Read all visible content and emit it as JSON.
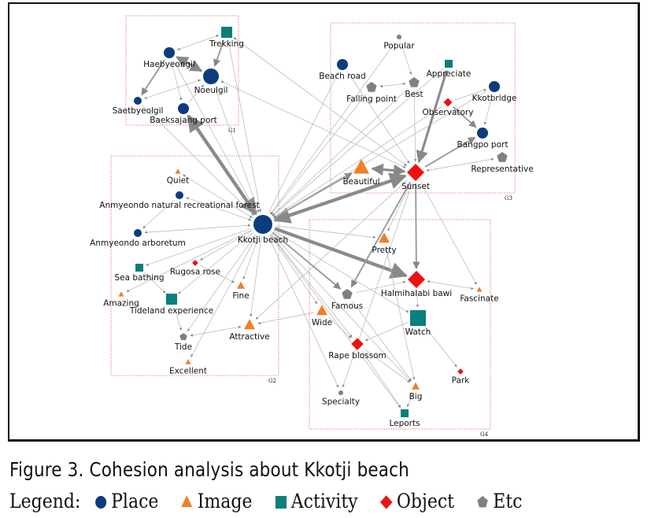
{
  "figure": {
    "caption": "Figure 3. Cohesion analysis about Kkotji beach",
    "legend_title": "Legend:",
    "categories": [
      {
        "key": "place",
        "label": "Place",
        "shape": "circle",
        "color": "#0b3d7e"
      },
      {
        "key": "image",
        "label": "Image",
        "shape": "triangle",
        "color": "#f07f2a"
      },
      {
        "key": "activity",
        "label": "Activity",
        "shape": "square",
        "color": "#0b7f7a"
      },
      {
        "key": "object",
        "label": "Object",
        "shape": "diamond",
        "color": "#ee1111"
      },
      {
        "key": "etc",
        "label": "Etc",
        "shape": "pentagon",
        "color": "#808080"
      }
    ]
  },
  "groups": [
    {
      "id": "G1",
      "label": "G1"
    },
    {
      "id": "G2",
      "label": "G2"
    },
    {
      "id": "G3",
      "label": "G3"
    },
    {
      "id": "G4",
      "label": "G4"
    }
  ],
  "nodes": [
    {
      "id": "trekking",
      "label": "Trekking",
      "type": "activity",
      "group": "G1",
      "size": "m"
    },
    {
      "id": "haebyeongil",
      "label": "Haebyeongil",
      "type": "place",
      "group": "G1",
      "size": "m"
    },
    {
      "id": "noeulgil",
      "label": "Noeulgil",
      "type": "place",
      "group": "G1",
      "size": "l"
    },
    {
      "id": "saetbyeolgil",
      "label": "Saetbyeolgil",
      "type": "place",
      "group": "G1",
      "size": "s"
    },
    {
      "id": "baeksajang",
      "label": "Baeksajang port",
      "type": "place",
      "group": "G1",
      "size": "m"
    },
    {
      "id": "quiet",
      "label": "Quiet",
      "type": "image",
      "group": "G2",
      "size": "xs"
    },
    {
      "id": "forest",
      "label": "Anmyeondo natural recreational forest",
      "type": "place",
      "group": "G2",
      "size": "s"
    },
    {
      "id": "arboretum",
      "label": "Anmyeondo arboretum",
      "type": "place",
      "group": "G2",
      "size": "s"
    },
    {
      "id": "kkotji",
      "label": "Kkotji beach",
      "type": "place",
      "group": "G2",
      "size": "xl"
    },
    {
      "id": "seabathing",
      "label": "Sea bathing",
      "type": "activity",
      "group": "G2",
      "size": "s"
    },
    {
      "id": "rugosa",
      "label": "Rugosa rose",
      "type": "object",
      "group": "G2",
      "size": "xs"
    },
    {
      "id": "amazing",
      "label": "Amazing",
      "type": "image",
      "group": "G2",
      "size": "xs"
    },
    {
      "id": "tideland",
      "label": "Tideland experience",
      "type": "activity",
      "group": "G2",
      "size": "m"
    },
    {
      "id": "fine",
      "label": "Fine",
      "type": "image",
      "group": "G2",
      "size": "s"
    },
    {
      "id": "tide",
      "label": "Tide",
      "type": "etc",
      "group": "G2",
      "size": "s"
    },
    {
      "id": "attractive",
      "label": "Attractive",
      "type": "image",
      "group": "G2",
      "size": "m"
    },
    {
      "id": "excellent",
      "label": "Excellent",
      "type": "image",
      "group": "G2",
      "size": "xs"
    },
    {
      "id": "popular",
      "label": "Popular",
      "type": "etc",
      "group": "G3",
      "size": "xs"
    },
    {
      "id": "beachroad",
      "label": "Beach road",
      "type": "place",
      "group": "G3",
      "size": "m"
    },
    {
      "id": "appreciate",
      "label": "Appreciate",
      "type": "activity",
      "group": "G3",
      "size": "s"
    },
    {
      "id": "fallingpoint",
      "label": "Falling point",
      "type": "etc",
      "group": "G3",
      "size": "m"
    },
    {
      "id": "best",
      "label": "Best",
      "type": "etc",
      "group": "G3",
      "size": "m"
    },
    {
      "id": "kkotbridge",
      "label": "Kkotbridge",
      "type": "place",
      "group": "G3",
      "size": "m"
    },
    {
      "id": "observatory",
      "label": "Observatory",
      "type": "object",
      "group": "G3",
      "size": "s"
    },
    {
      "id": "bangpo",
      "label": "Bangpo port",
      "type": "place",
      "group": "G3",
      "size": "m"
    },
    {
      "id": "representative",
      "label": "Representative",
      "type": "etc",
      "group": "G3",
      "size": "m"
    },
    {
      "id": "beautiful",
      "label": "Beautiful",
      "type": "image",
      "group": "G3",
      "size": "l"
    },
    {
      "id": "sunset",
      "label": "Sunset",
      "type": "object",
      "group": "G3",
      "size": "l"
    },
    {
      "id": "pretty",
      "label": "Pretty",
      "type": "image",
      "group": "G4",
      "size": "m"
    },
    {
      "id": "halmihalabi",
      "label": "Halmihalabi bawi",
      "type": "object",
      "group": "G4",
      "size": "l"
    },
    {
      "id": "fascinate",
      "label": "Fascinate",
      "type": "image",
      "group": "G4",
      "size": "xs"
    },
    {
      "id": "famous",
      "label": "Famous",
      "type": "etc",
      "group": "G4",
      "size": "m"
    },
    {
      "id": "wide",
      "label": "Wide",
      "type": "image",
      "group": "G4",
      "size": "m"
    },
    {
      "id": "watch",
      "label": "Watch",
      "type": "activity",
      "group": "G4",
      "size": "l"
    },
    {
      "id": "rapeblossom",
      "label": "Rape blossom",
      "type": "object",
      "group": "G4",
      "size": "m"
    },
    {
      "id": "park",
      "label": "Park",
      "type": "object",
      "group": "G4",
      "size": "xs"
    },
    {
      "id": "big",
      "label": "Big",
      "type": "image",
      "group": "G4",
      "size": "s"
    },
    {
      "id": "specialty",
      "label": "Specialty",
      "type": "etc",
      "group": "G4",
      "size": "xs"
    },
    {
      "id": "leports",
      "label": "Leports",
      "type": "activity",
      "group": "G4",
      "size": "s"
    }
  ],
  "edges": [
    {
      "from": "haebyeongil",
      "to": "noeulgil",
      "weight": 3,
      "both": true
    },
    {
      "from": "trekking",
      "to": "haebyeongil",
      "weight": 1,
      "both": true
    },
    {
      "from": "trekking",
      "to": "noeulgil",
      "weight": 2
    },
    {
      "from": "haebyeongil",
      "to": "saetbyeolgil",
      "weight": 2
    },
    {
      "from": "noeulgil",
      "to": "saetbyeolgil",
      "weight": 1,
      "both": true
    },
    {
      "from": "haebyeongil",
      "to": "baeksajang",
      "weight": 1
    },
    {
      "from": "baeksajang",
      "to": "noeulgil",
      "weight": 1
    },
    {
      "from": "kkotji",
      "to": "baeksajang",
      "weight": 4,
      "both": true
    },
    {
      "from": "haebyeongil",
      "to": "kkotji",
      "weight": 1
    },
    {
      "from": "noeulgil",
      "to": "kkotji",
      "weight": 1
    },
    {
      "from": "saetbyeolgil",
      "to": "kkotji",
      "weight": 1
    },
    {
      "from": "trekking",
      "to": "kkotji",
      "weight": 1
    },
    {
      "from": "trekking",
      "to": "sunset",
      "weight": 1,
      "both": true
    },
    {
      "from": "noeulgil",
      "to": "sunset",
      "weight": 1,
      "both": true
    },
    {
      "from": "quiet",
      "to": "kkotji",
      "weight": 1,
      "both": true
    },
    {
      "from": "forest",
      "to": "kkotji",
      "weight": 1,
      "both": true
    },
    {
      "from": "forest",
      "to": "arboretum",
      "weight": 1
    },
    {
      "from": "arboretum",
      "to": "kkotji",
      "weight": 1,
      "both": true
    },
    {
      "from": "kkotji",
      "to": "seabathing",
      "weight": 1
    },
    {
      "from": "kkotji",
      "to": "rugosa",
      "weight": 1
    },
    {
      "from": "kkotji",
      "to": "amazing",
      "weight": 1
    },
    {
      "from": "kkotji",
      "to": "tideland",
      "weight": 1
    },
    {
      "from": "seabathing",
      "to": "tideland",
      "weight": 1
    },
    {
      "from": "rugosa",
      "to": "fine",
      "weight": 1
    },
    {
      "from": "kkotji",
      "to": "fine",
      "weight": 1
    },
    {
      "from": "tideland",
      "to": "tide",
      "weight": 1
    },
    {
      "from": "kkotji",
      "to": "tide",
      "weight": 1
    },
    {
      "from": "attractive",
      "to": "tide",
      "weight": 1,
      "both": true
    },
    {
      "from": "kkotji",
      "to": "attractive",
      "weight": 1
    },
    {
      "from": "sunset",
      "to": "attractive",
      "weight": 1
    },
    {
      "from": "kkotji",
      "to": "excellent",
      "weight": 1
    },
    {
      "from": "popular",
      "to": "best",
      "weight": 1
    },
    {
      "from": "popular",
      "to": "kkotji",
      "weight": 1
    },
    {
      "from": "kkotji",
      "to": "beachroad",
      "weight": 1
    },
    {
      "from": "fallingpoint",
      "to": "best",
      "weight": 1,
      "both": true
    },
    {
      "from": "best",
      "to": "sunset",
      "weight": 1
    },
    {
      "from": "appreciate",
      "to": "sunset",
      "weight": 3
    },
    {
      "from": "kkotbridge",
      "to": "bangpo",
      "weight": 1
    },
    {
      "from": "observatory",
      "to": "kkotbridge",
      "weight": 1
    },
    {
      "from": "observatory",
      "to": "bangpo",
      "weight": 2
    },
    {
      "from": "sunset",
      "to": "bangpo",
      "weight": 2
    },
    {
      "from": "representative",
      "to": "sunset",
      "weight": 1,
      "both": true
    },
    {
      "from": "beautiful",
      "to": "sunset",
      "weight": 3,
      "both": true
    },
    {
      "from": "kkotji",
      "to": "sunset",
      "weight": 4,
      "both": true
    },
    {
      "from": "kkotji",
      "to": "beautiful",
      "weight": 2
    },
    {
      "from": "beachroad",
      "to": "sunset",
      "weight": 1
    },
    {
      "from": "fallingpoint",
      "to": "kkotji",
      "weight": 1
    },
    {
      "from": "appreciate",
      "to": "kkotji",
      "weight": 1
    },
    {
      "from": "kkotbridge",
      "to": "kkotji",
      "weight": 1
    },
    {
      "from": "observatory",
      "to": "kkotji",
      "weight": 1
    },
    {
      "from": "best",
      "to": "kkotji",
      "weight": 1
    },
    {
      "from": "kkotji",
      "to": "halmihalabi",
      "weight": 4
    },
    {
      "from": "sunset",
      "to": "halmihalabi",
      "weight": 2
    },
    {
      "from": "sunset",
      "to": "famous",
      "weight": 2
    },
    {
      "from": "sunset",
      "to": "pretty",
      "weight": 1
    },
    {
      "from": "sunset",
      "to": "fascinate",
      "weight": 1
    },
    {
      "from": "kkotji",
      "to": "famous",
      "weight": 2
    },
    {
      "from": "kkotji",
      "to": "pretty",
      "weight": 1
    },
    {
      "from": "halmihalabi",
      "to": "fascinate",
      "weight": 1,
      "both": true
    },
    {
      "from": "halmihalabi",
      "to": "watch",
      "weight": 1
    },
    {
      "from": "famous",
      "to": "halmihalabi",
      "weight": 1
    },
    {
      "from": "kkotji",
      "to": "wide",
      "weight": 1
    },
    {
      "from": "kkotji",
      "to": "watch",
      "weight": 1
    },
    {
      "from": "kkotji",
      "to": "rapeblossom",
      "weight": 1
    },
    {
      "from": "kkotji",
      "to": "specialty",
      "weight": 1
    },
    {
      "from": "kkotji",
      "to": "big",
      "weight": 1
    },
    {
      "from": "kkotji",
      "to": "leports",
      "weight": 1
    },
    {
      "from": "watch",
      "to": "park",
      "weight": 1
    },
    {
      "from": "rapeblossom",
      "to": "leports",
      "weight": 1
    },
    {
      "from": "rapeblossom",
      "to": "big",
      "weight": 1
    },
    {
      "from": "big",
      "to": "leports",
      "weight": 1
    },
    {
      "from": "pretty",
      "to": "big",
      "weight": 1
    },
    {
      "from": "watch",
      "to": "rapeblossom",
      "weight": 1
    },
    {
      "from": "sunset",
      "to": "specialty",
      "weight": 1
    },
    {
      "from": "wide",
      "to": "attractive",
      "weight": 1
    },
    {
      "from": "famous",
      "to": "big",
      "weight": 1
    },
    {
      "from": "wide",
      "to": "rapeblossom",
      "weight": 1
    }
  ]
}
